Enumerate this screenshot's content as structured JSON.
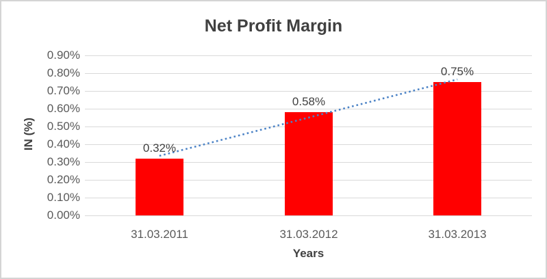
{
  "chart_data": {
    "type": "bar",
    "title": "Net Profit Margin",
    "xlabel": "Years",
    "ylabel": "IN (%)",
    "categories": [
      "31.03.2011",
      "31.03.2012",
      "31.03.2013"
    ],
    "values": [
      0.32,
      0.58,
      0.75
    ],
    "data_labels": [
      "0.32%",
      "0.58%",
      "0.75%"
    ],
    "ylim": [
      0,
      0.9
    ],
    "ytick_values": [
      0,
      0.1,
      0.2,
      0.3,
      0.4,
      0.5,
      0.6,
      0.7,
      0.8,
      0.9
    ],
    "ytick_labels": [
      "0.00%",
      "0.10%",
      "0.20%",
      "0.30%",
      "0.40%",
      "0.50%",
      "0.60%",
      "0.70%",
      "0.80%",
      "0.90%"
    ],
    "grid": true,
    "legend": false,
    "bar_color": "#FF0000",
    "gridline_color": "#D9D9D9",
    "tick_text_color": "#595959",
    "label_text_color": "#404040",
    "trendline": {
      "type": "linear",
      "style": "dotted",
      "color": "#4C83C6"
    }
  }
}
